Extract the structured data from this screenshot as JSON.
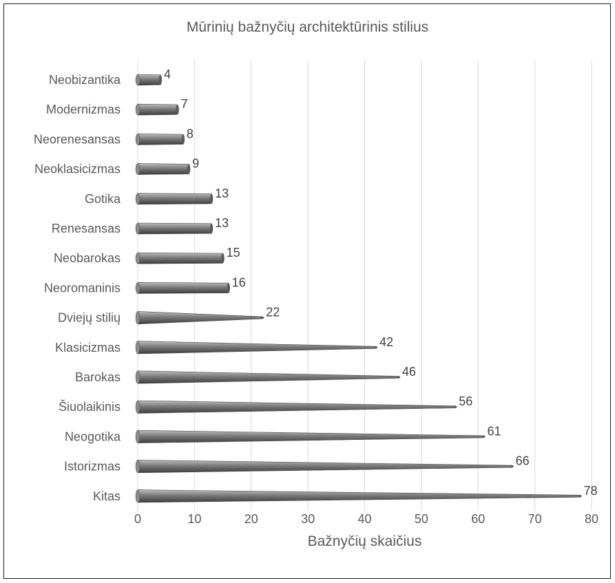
{
  "chart_data": {
    "type": "bar",
    "orientation": "horizontal",
    "title": "Mūrinių bažnyčių architektūrinis stilius",
    "xlabel": "Bažnyčių skaičius",
    "ylabel": "",
    "categories": [
      "Neobizantika",
      "Modernizmas",
      "Neorenesansas",
      "Neoklasicizmas",
      "Gotika",
      "Renesansas",
      "Neobarokas",
      "Neoromaninis",
      "Dviejų stilių",
      "Klasicizmas",
      "Barokas",
      "Šiuolaikinis",
      "Neogotika",
      "Istorizmas",
      "Kitas"
    ],
    "values": [
      4,
      7,
      8,
      9,
      13,
      13,
      15,
      16,
      22,
      42,
      46,
      56,
      61,
      66,
      78
    ],
    "xlim": [
      0,
      80
    ],
    "x_ticks": [
      0,
      10,
      20,
      30,
      40,
      50,
      60,
      70,
      80
    ],
    "grid": true,
    "legend": "none",
    "bar_color": "#7f7f7f"
  }
}
